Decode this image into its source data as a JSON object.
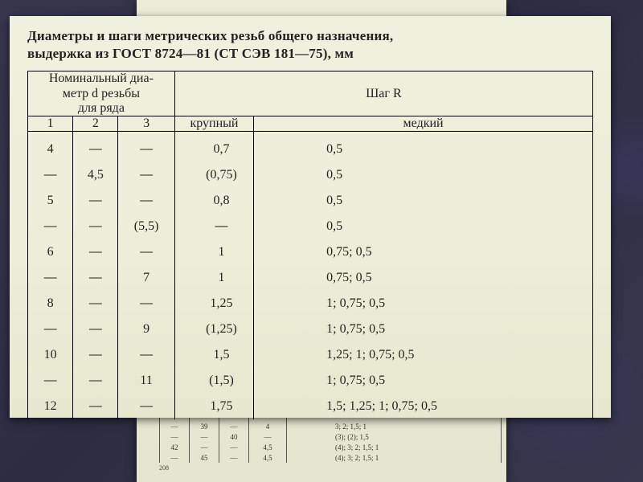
{
  "title_line1": "Диаметры и шаги метрических резьб общего назначения,",
  "title_line2": "выдержка из ГОСТ 8724—81 (СТ СЭВ 181—75), мм",
  "header": {
    "nominal": "Номинальный диа-\nметр d резьбы\nдля ряда",
    "pitch": "Шаг R",
    "c1": "1",
    "c2": "2",
    "c3": "3",
    "coarse": "крупный",
    "fine": "медкий"
  },
  "dash": "—",
  "rows": [
    {
      "c1": "4",
      "c2": "—",
      "c3": "—",
      "coarse": "0,7",
      "fine": "0,5"
    },
    {
      "c1": "—",
      "c2": "4,5",
      "c3": "—",
      "coarse": "(0,75)",
      "fine": "0,5"
    },
    {
      "c1": "5",
      "c2": "—",
      "c3": "—",
      "coarse": "0,8",
      "fine": "0,5"
    },
    {
      "c1": "—",
      "c2": "—",
      "c3": "(5,5)",
      "coarse": "—",
      "fine": "0,5"
    },
    {
      "c1": "6",
      "c2": "—",
      "c3": "—",
      "coarse": "1",
      "fine": "0,75; 0,5"
    },
    {
      "c1": "—",
      "c2": "—",
      "c3": "7",
      "coarse": "1",
      "fine": "0,75; 0,5"
    },
    {
      "c1": "8",
      "c2": "—",
      "c3": "—",
      "coarse": "1,25",
      "fine": "1; 0,75; 0,5"
    },
    {
      "c1": "—",
      "c2": "—",
      "c3": "9",
      "coarse": "(1,25)",
      "fine": "1; 0,75; 0,5"
    },
    {
      "c1": "10",
      "c2": "—",
      "c3": "—",
      "coarse": "1,5",
      "fine": "1,25; 1; 0,75; 0,5"
    },
    {
      "c1": "—",
      "c2": "—",
      "c3": "11",
      "coarse": "(1,5)",
      "fine": "1; 0,75; 0,5"
    },
    {
      "c1": "12",
      "c2": "—",
      "c3": "—",
      "coarse": "1,75",
      "fine": "1,5; 1,25; 1; 0,75; 0,5"
    }
  ],
  "back_rows": [
    {
      "c1": "—",
      "c2": "39",
      "c3": "—",
      "coarse": "4",
      "fine": "3; 2; 1,5; 1"
    },
    {
      "c1": "—",
      "c2": "—",
      "c3": "40",
      "coarse": "—",
      "fine": "(3); (2); 1,5"
    },
    {
      "c1": "42",
      "c2": "—",
      "c3": "—",
      "coarse": "4,5",
      "fine": "(4); 3; 2; 1,5; 1"
    },
    {
      "c1": "—",
      "c2": "45",
      "c3": "—",
      "coarse": "4,5",
      "fine": "(4); 3; 2; 1,5; 1"
    }
  ],
  "back_page_number": "208",
  "colors": {
    "paper": "#eeeedd",
    "slide_bg": "#2e2d44",
    "text": "#222222",
    "rule": "#000000"
  },
  "col_widths_pct": [
    8,
    8,
    10,
    14,
    60
  ]
}
